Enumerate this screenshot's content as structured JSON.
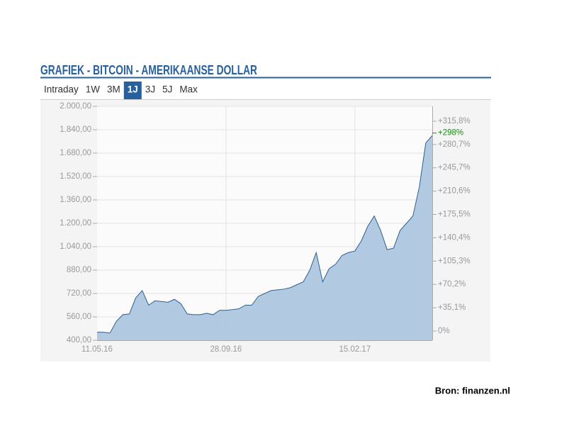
{
  "chart_data": {
    "type": "area",
    "title": "GRAFIEK - BITCOIN - AMERIKAANSE DOLLAR",
    "tabs": [
      "Intraday",
      "1W",
      "3M",
      "1J",
      "3J",
      "5J",
      "Max"
    ],
    "selected_tab": 3,
    "categories": [
      "11.05.16",
      null,
      null,
      null,
      null,
      null,
      null,
      null,
      null,
      null,
      null,
      null,
      null,
      null,
      null,
      null,
      null,
      null,
      null,
      null,
      "28.09.16",
      null,
      null,
      null,
      null,
      null,
      null,
      null,
      null,
      null,
      null,
      null,
      null,
      null,
      null,
      null,
      null,
      null,
      null,
      null,
      "15.02.17",
      null,
      null,
      null,
      null,
      null,
      null,
      null,
      null,
      null,
      null,
      null,
      null
    ],
    "values": [
      455,
      455,
      450,
      530,
      575,
      580,
      690,
      740,
      640,
      670,
      665,
      660,
      680,
      650,
      580,
      575,
      575,
      585,
      575,
      605,
      605,
      610,
      615,
      640,
      640,
      700,
      720,
      740,
      745,
      750,
      760,
      780,
      800,
      880,
      1000,
      800,
      890,
      920,
      980,
      1000,
      1010,
      1080,
      1180,
      1250,
      1150,
      1020,
      1030,
      1150,
      1200,
      1250,
      1450,
      1750,
      1800
    ],
    "color": "#a9c4df",
    "line_color": "#2f5f8f",
    "ylim": [
      400,
      2000
    ],
    "yticks": [
      {
        "value": 400,
        "label": "400,00"
      },
      {
        "value": 560,
        "label": "560,00"
      },
      {
        "value": 720,
        "label": "720,00"
      },
      {
        "value": 880,
        "label": "880,00"
      },
      {
        "value": 1040,
        "label": "1.040,00"
      },
      {
        "value": 1200,
        "label": "1.200,00"
      },
      {
        "value": 1360,
        "label": "1.360,00"
      },
      {
        "value": 1520,
        "label": "1.520,00"
      },
      {
        "value": 1680,
        "label": "1.680,00"
      },
      {
        "value": 1840,
        "label": "1.840,00"
      },
      {
        "value": 2000,
        "label": "2.000,00"
      }
    ],
    "y2lim": [
      -13.9,
      338.2
    ],
    "y2ticks": [
      {
        "value": 0,
        "label": "0%"
      },
      {
        "value": 35.1,
        "label": "+35,1%"
      },
      {
        "value": 70.2,
        "label": "+70,2%"
      },
      {
        "value": 105.3,
        "label": "+105,3%"
      },
      {
        "value": 140.4,
        "label": "+140,4%"
      },
      {
        "value": 175.5,
        "label": "+175,5%"
      },
      {
        "value": 210.6,
        "label": "+210,6%"
      },
      {
        "value": 245.7,
        "label": "+245,7%"
      },
      {
        "value": 280.7,
        "label": "+280,7%"
      },
      {
        "value": 315.8,
        "label": "+315,8%"
      }
    ],
    "annotation": {
      "value": 298,
      "label": "+298%"
    },
    "grid": true
  },
  "source": "Bron: finanzen.nl"
}
